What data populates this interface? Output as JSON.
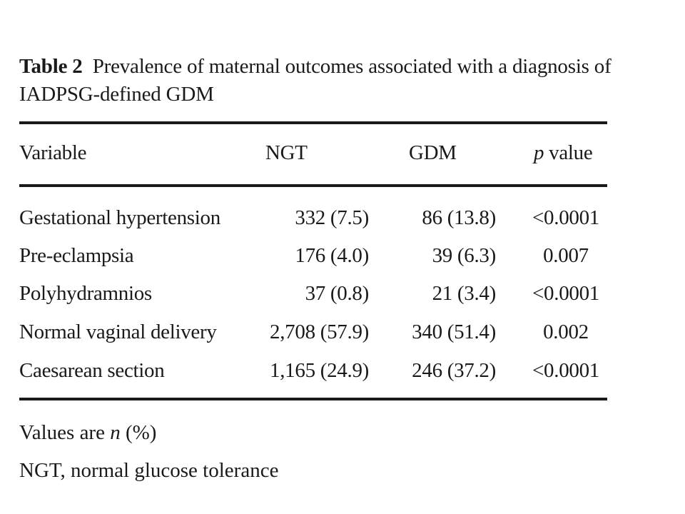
{
  "caption": {
    "label": "Table 2",
    "text": "Prevalence of maternal outcomes associated with a diagnosis of IADPSG-defined GDM"
  },
  "table": {
    "headers": {
      "variable": "Variable",
      "ngt": "NGT",
      "gdm": "GDM",
      "p_value_italic": "p",
      "p_value_rest": " value"
    },
    "rows": [
      {
        "variable": "Gestational hypertension",
        "ngt": "332 (7.5)",
        "gdm": "86 (13.8)",
        "p": "<0.0001"
      },
      {
        "variable": "Pre-eclampsia",
        "ngt": "176 (4.0)",
        "gdm": "39 (6.3)",
        "p": "0.007"
      },
      {
        "variable": "Polyhydramnios",
        "ngt": "37 (0.8)",
        "gdm": "21 (3.4)",
        "p": "<0.0001"
      },
      {
        "variable": "Normal vaginal delivery",
        "ngt": "2,708 (57.9)",
        "gdm": "340 (51.4)",
        "p": "0.002"
      },
      {
        "variable": "Caesarean section",
        "ngt": "1,165 (24.9)",
        "gdm": "246 (37.2)",
        "p": "<0.0001"
      }
    ]
  },
  "footnotes": {
    "values_prefix": "Values are ",
    "values_n": "n",
    "values_suffix": " (%)",
    "ngt_def": "NGT, normal glucose tolerance"
  }
}
